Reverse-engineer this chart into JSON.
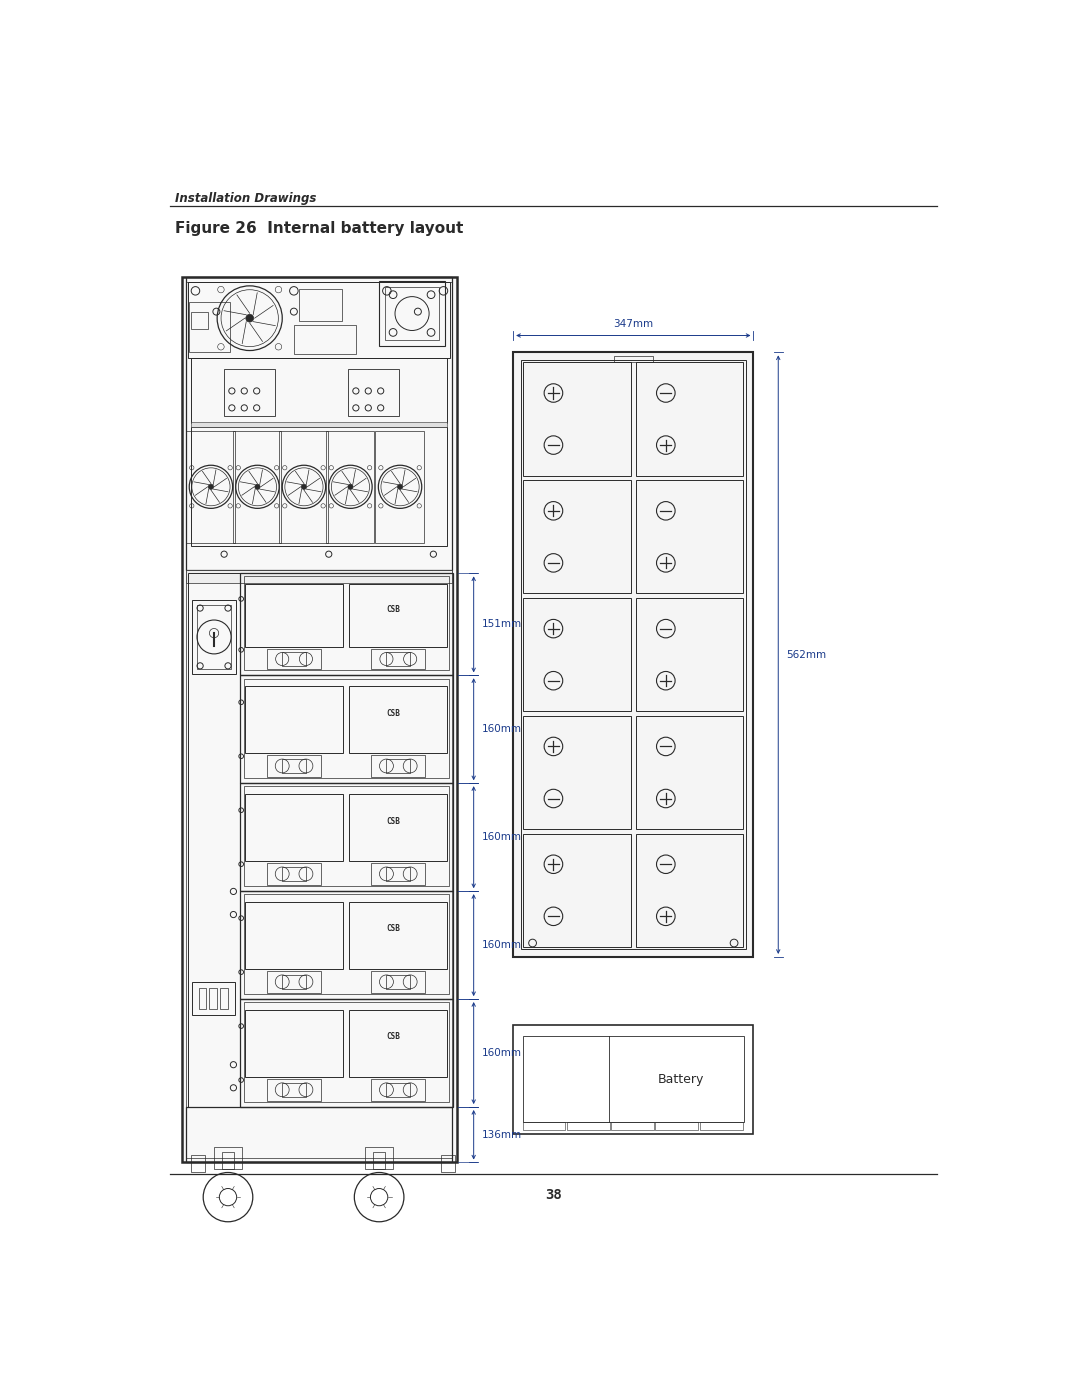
{
  "page_title": "Installation Drawings",
  "figure_title": "Figure 26  Internal battery layout",
  "page_number": "38",
  "bg_color": "#ffffff",
  "line_color": "#2a2a2a",
  "dim_color": "#1a3a8a",
  "dim_labels": {
    "width_top": "347mm",
    "height_right": "562mm",
    "section1": "151mm",
    "section2": "160mm",
    "section3": "160mm",
    "section4": "160mm",
    "section5": "160mm",
    "section6": "136mm"
  },
  "battery_rows": [
    [
      "+",
      "-"
    ],
    [
      "-",
      "+"
    ],
    [
      "+",
      "-"
    ],
    [
      "-",
      "+"
    ],
    [
      "+",
      "-"
    ],
    [
      "-",
      "+"
    ],
    [
      "+",
      "-"
    ],
    [
      "-",
      "+"
    ],
    [
      "+",
      "-"
    ],
    [
      "-",
      "+"
    ]
  ]
}
